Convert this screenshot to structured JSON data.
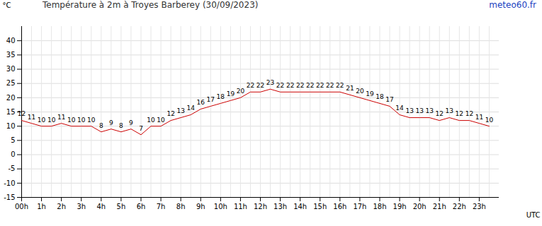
{
  "chart_data": {
    "type": "line",
    "title": "Température à 2m à Troyes Barberey (30/09/2023)",
    "annotations": [
      "meteo60.fr"
    ],
    "y_label": "°C",
    "x_label": "UTC",
    "x": [
      0,
      0.5,
      1,
      1.5,
      2,
      2.5,
      3,
      3.5,
      4,
      4.5,
      5,
      5.5,
      6,
      6.5,
      7,
      7.5,
      8,
      8.5,
      9,
      9.5,
      10,
      10.5,
      11,
      11.5,
      12,
      12.5,
      13,
      13.5,
      14,
      14.5,
      15,
      15.5,
      16,
      16.5,
      17,
      17.5,
      18,
      18.5,
      19,
      19.5,
      20,
      20.5,
      21,
      21.5,
      22,
      22.5,
      23,
      23.5
    ],
    "values": [
      12,
      11,
      10,
      10,
      11,
      10,
      10,
      10,
      8,
      9,
      8,
      9,
      7,
      10,
      10,
      12,
      13,
      14,
      16,
      17,
      18,
      19,
      20,
      22,
      22,
      23,
      22,
      22,
      22,
      22,
      22,
      22,
      22,
      21,
      20,
      19,
      18,
      17,
      14,
      13,
      13,
      13,
      12,
      13,
      12,
      12,
      11,
      10
    ],
    "color": "#cc0000",
    "xlim": [
      0,
      24
    ],
    "xticks": [
      {
        "value": 0,
        "label": "00h"
      },
      {
        "value": 1,
        "label": "1h"
      },
      {
        "value": 2,
        "label": "2h"
      },
      {
        "value": 3,
        "label": "3h"
      },
      {
        "value": 4,
        "label": "4h"
      },
      {
        "value": 5,
        "label": "5h"
      },
      {
        "value": 6,
        "label": "6h"
      },
      {
        "value": 7,
        "label": "7h"
      },
      {
        "value": 8,
        "label": "8h"
      },
      {
        "value": 9,
        "label": "9h"
      },
      {
        "value": 10,
        "label": "10h"
      },
      {
        "value": 11,
        "label": "11h"
      },
      {
        "value": 12,
        "label": "12h"
      },
      {
        "value": 13,
        "label": "13h"
      },
      {
        "value": 14,
        "label": "14h"
      },
      {
        "value": 15,
        "label": "15h"
      },
      {
        "value": 16,
        "label": "16h"
      },
      {
        "value": 17,
        "label": "17h"
      },
      {
        "value": 18,
        "label": "18h"
      },
      {
        "value": 19,
        "label": "19h"
      },
      {
        "value": 20,
        "label": "20h"
      },
      {
        "value": 21,
        "label": "21h"
      },
      {
        "value": 22,
        "label": "22h"
      },
      {
        "value": 23,
        "label": "23h"
      }
    ],
    "ylim": [
      -15,
      45
    ],
    "yticks": [
      -15,
      -10,
      -5,
      0,
      5,
      10,
      15,
      20,
      25,
      30,
      35,
      40
    ],
    "grid": true,
    "data_labels": true
  }
}
